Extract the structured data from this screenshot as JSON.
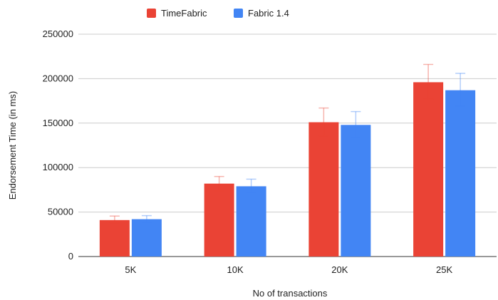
{
  "chart_data": {
    "type": "bar",
    "categories": [
      "5K",
      "10K",
      "20K",
      "25K"
    ],
    "series": [
      {
        "name": "TimeFabric",
        "color": "#ea4335",
        "values": [
          41000,
          82000,
          151000,
          196000
        ],
        "error_low": [
          38000,
          74000,
          136000,
          177000
        ],
        "error_high": [
          45500,
          90000,
          167000,
          216000
        ]
      },
      {
        "name": "Fabric 1.4",
        "color": "#4285f4",
        "values": [
          42000,
          79000,
          148000,
          187000
        ],
        "error_low": [
          38500,
          72000,
          134000,
          169000
        ],
        "error_high": [
          46000,
          87000,
          163000,
          206000
        ]
      }
    ],
    "xlabel": "No of transactions",
    "ylabel": "Endorsement Time (in ms)",
    "ylim": [
      0,
      250000
    ],
    "yticks": [
      "0",
      "50000",
      "100000",
      "150000",
      "200000",
      "250000"
    ],
    "ytick_values": [
      0,
      50000,
      100000,
      150000,
      200000,
      250000
    ],
    "grid": true,
    "legend_position": "top"
  }
}
